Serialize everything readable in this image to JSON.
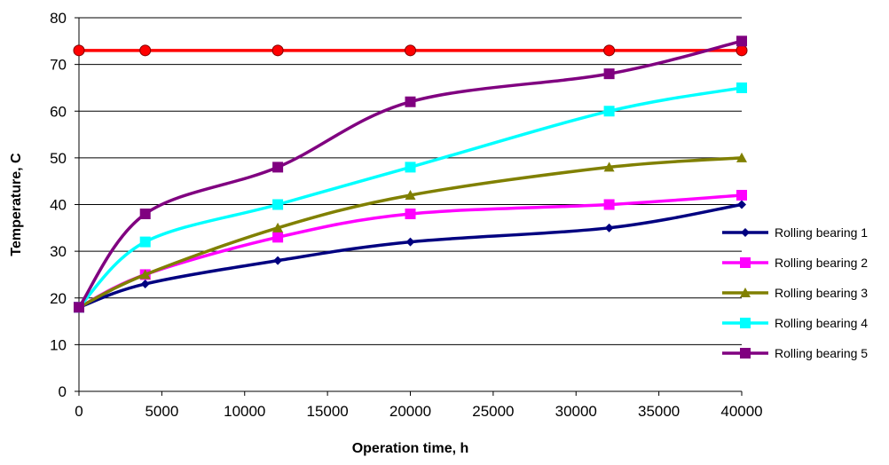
{
  "chart_data": {
    "type": "line",
    "xlabel": "Operation time, h",
    "ylabel": "Temperature, C",
    "xlim": [
      0,
      40000
    ],
    "ylim": [
      0,
      80
    ],
    "x_ticks": [
      0,
      5000,
      10000,
      15000,
      20000,
      25000,
      30000,
      35000,
      40000
    ],
    "y_ticks": [
      0,
      10,
      20,
      30,
      40,
      50,
      60,
      70,
      80
    ],
    "grid": "horizontal",
    "legend_position": "right",
    "x": [
      0,
      4000,
      12000,
      20000,
      32000,
      40000
    ],
    "series": [
      {
        "name": "",
        "marker": "circle",
        "color": "#ff0000",
        "values": [
          73,
          73,
          73,
          73,
          73,
          73
        ],
        "in_legend": false
      },
      {
        "name": "Rolling bearing 1",
        "marker": "diamond",
        "color": "#000080",
        "values": [
          18,
          23,
          28,
          32,
          35,
          40
        ],
        "in_legend": true
      },
      {
        "name": "Rolling bearing 2",
        "marker": "square",
        "color": "#ff00ff",
        "values": [
          18,
          25,
          33,
          38,
          40,
          42
        ],
        "in_legend": true
      },
      {
        "name": "Rolling bearing 3",
        "marker": "triangle",
        "color": "#808000",
        "values": [
          18,
          25,
          35,
          42,
          48,
          50
        ],
        "in_legend": true
      },
      {
        "name": "Rolling bearing 4",
        "marker": "square",
        "color": "#00ffff",
        "values": [
          18,
          32,
          40,
          48,
          60,
          65
        ],
        "in_legend": true
      },
      {
        "name": "Rolling bearing 5",
        "marker": "square",
        "color": "#800080",
        "values": [
          18,
          38,
          48,
          62,
          68,
          75
        ],
        "in_legend": true
      }
    ]
  }
}
